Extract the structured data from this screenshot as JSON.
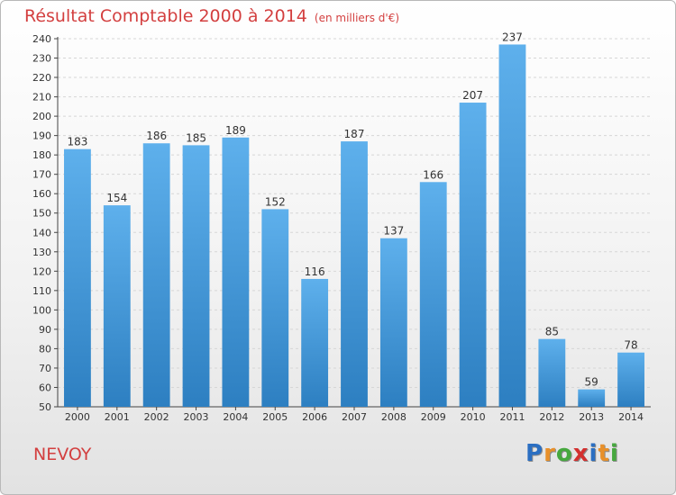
{
  "title": "Résultat Comptable 2000 à 2014",
  "subtitle": "(en milliers d'€)",
  "place": "NEVOY",
  "logo": {
    "letters": [
      "P",
      "r",
      "o",
      "x",
      "i",
      "t",
      "i"
    ],
    "colors": [
      "#2b6fc2",
      "#e8902a",
      "#46a83e",
      "#d3302f",
      "#2b6fc2",
      "#e8902a",
      "#46a83e"
    ]
  },
  "colors": {
    "bar_top": "#5eb0ec",
    "bar_bottom": "#2d7fc1",
    "title": "#d33f3f",
    "text": "#333333"
  },
  "chart_data": {
    "type": "bar",
    "title": "Résultat Comptable 2000 à 2014",
    "xlabel": "",
    "ylabel": "",
    "ylim": [
      50,
      240
    ],
    "ytick_step": 10,
    "grid": true,
    "categories": [
      "2000",
      "2001",
      "2002",
      "2003",
      "2004",
      "2005",
      "2006",
      "2007",
      "2008",
      "2009",
      "2010",
      "2011",
      "2012",
      "2013",
      "2014"
    ],
    "values": [
      183,
      154,
      186,
      185,
      189,
      152,
      116,
      187,
      137,
      166,
      207,
      237,
      85,
      59,
      78
    ]
  }
}
